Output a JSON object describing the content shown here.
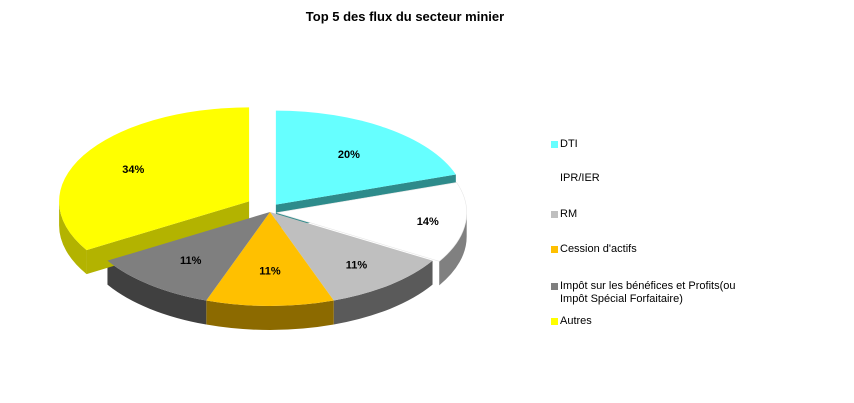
{
  "chart_data": {
    "type": "pie",
    "title": "Top 5 des flux du secteur minier",
    "categories": [
      "DTI",
      "IPR/IER",
      "RM",
      "Cession d'actifs",
      "Impôt sur les bénéfices et Profits(ou Impôt Spécial Forfaitaire)",
      "Autres"
    ],
    "values": [
      20,
      14,
      11,
      11,
      11,
      34
    ],
    "value_labels": [
      "20%",
      "14%",
      "11%",
      "11%",
      "11%",
      "34%"
    ],
    "colors": [
      "#66FFFF",
      "#FFFFFF",
      "#BFBFBF",
      "#FFC000",
      "#7F7F7F",
      "#FFFF00"
    ],
    "side_colors": [
      "#2E8B8B",
      "#808080",
      "#5A5A5A",
      "#8C6A00",
      "#404040",
      "#B3B300"
    ],
    "exploded": [
      true,
      false,
      false,
      false,
      false,
      true
    ],
    "legend_position": "right",
    "style": "3d-exploded"
  },
  "legend": {
    "items": [
      {
        "label_lines": [
          "DTI"
        ]
      },
      {
        "label_lines": [
          "IPR/IER"
        ]
      },
      {
        "label_lines": [
          "RM"
        ]
      },
      {
        "label_lines": [
          "Cession d'actifs"
        ]
      },
      {
        "label_lines": [
          "Impôt sur les bénéfices et Profits(ou",
          "Impôt Spécial Forfaitaire)"
        ]
      },
      {
        "label_lines": [
          "Autres"
        ]
      }
    ]
  }
}
